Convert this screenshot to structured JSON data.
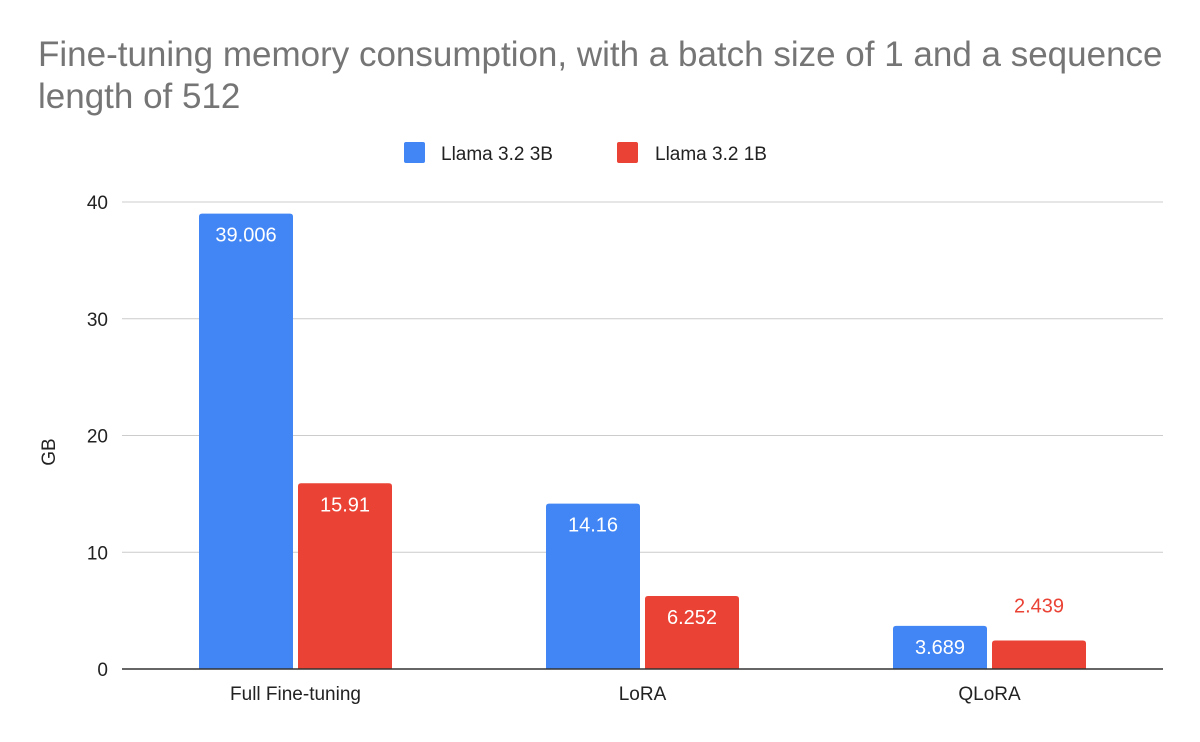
{
  "chart_data": {
    "type": "bar",
    "title": "Fine-tuning memory consumption, with a batch size of 1 and a sequence length of 512",
    "xlabel": "",
    "ylabel": "GB",
    "ylim": [
      0,
      40
    ],
    "yticks": [
      "0",
      "10",
      "20",
      "30",
      "40"
    ],
    "ytick_values": [
      0,
      10,
      20,
      30,
      40
    ],
    "grid": true,
    "legend_position": "top-center",
    "categories": [
      "Full Fine-tuning",
      "LoRA",
      "QLoRA"
    ],
    "series": [
      {
        "name": "Llama 3.2 3B",
        "color": "#4285F4",
        "values": [
          39.006,
          14.16,
          3.689
        ],
        "labels": [
          "39.006",
          "14.16",
          "3.689"
        ]
      },
      {
        "name": "Llama 3.2 1B",
        "color": "#EA4335",
        "values": [
          15.91,
          6.252,
          2.439
        ],
        "labels": [
          "15.91",
          "6.252",
          "2.439"
        ]
      }
    ]
  }
}
